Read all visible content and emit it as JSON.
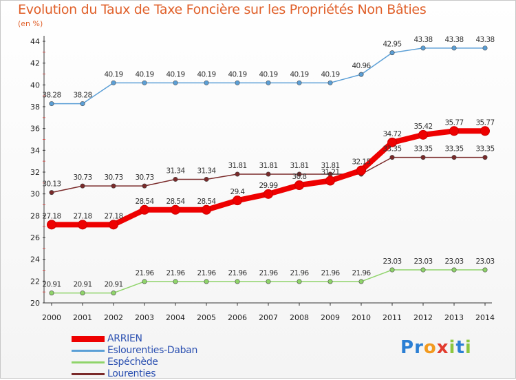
{
  "chart_data": {
    "type": "line",
    "title": "Evolution du Taux de Taxe Foncière sur les Propriétés Non Bâties",
    "ylabel": "(en %)",
    "x": [
      "2000",
      "2001",
      "2002",
      "2003",
      "2004",
      "2005",
      "2006",
      "2007",
      "2008",
      "2009",
      "2010",
      "2011",
      "2012",
      "2013",
      "2014"
    ],
    "ylim": [
      20,
      44
    ],
    "yticks": [
      20,
      22,
      24,
      26,
      28,
      30,
      32,
      34,
      36,
      38,
      40,
      42,
      44
    ],
    "grid": false,
    "legend_placement": "bottom-left",
    "series": [
      {
        "name": "ARRIEN",
        "color": "#ee0000",
        "values": [
          27.18,
          27.18,
          27.18,
          28.54,
          28.54,
          28.54,
          29.4,
          29.99,
          30.8,
          31.21,
          32.15,
          34.72,
          35.42,
          35.77,
          35.77
        ],
        "labels": [
          "27.18",
          "27.18",
          "27.18",
          "28.54",
          "28.54",
          "28.54",
          "29.4",
          "29.99",
          "30.8",
          "31.21",
          "32.15",
          "34.72",
          "35.42",
          "35.77",
          "35.77"
        ]
      },
      {
        "name": "Eslourenties-Daban",
        "color": "#5b9fd6",
        "values": [
          38.28,
          38.28,
          40.19,
          40.19,
          40.19,
          40.19,
          40.19,
          40.19,
          40.19,
          40.19,
          40.96,
          42.95,
          43.38,
          43.38,
          43.38
        ],
        "labels": [
          "38.28",
          "38.28",
          "40.19",
          "40.19",
          "40.19",
          "40.19",
          "40.19",
          "40.19",
          "40.19",
          "40.19",
          "40.96",
          "42.95",
          "43.38",
          "43.38",
          "43.38"
        ]
      },
      {
        "name": "Espéchède",
        "color": "#8fd46a",
        "values": [
          20.91,
          20.91,
          20.91,
          21.96,
          21.96,
          21.96,
          21.96,
          21.96,
          21.96,
          21.96,
          21.96,
          23.03,
          23.03,
          23.03,
          23.03
        ],
        "labels": [
          "20.91",
          "20.91",
          "20.91",
          "21.96",
          "21.96",
          "21.96",
          "21.96",
          "21.96",
          "21.96",
          "21.96",
          "21.96",
          "23.03",
          "23.03",
          "23.03",
          "23.03"
        ]
      },
      {
        "name": "Lourenties",
        "color": "#7a2a2a",
        "values": [
          30.13,
          30.73,
          30.73,
          30.73,
          31.34,
          31.34,
          31.81,
          31.81,
          31.81,
          31.81,
          31.81,
          33.35,
          33.35,
          33.35,
          33.35
        ],
        "labels": [
          "30.13",
          "30.73",
          "30.73",
          "30.73",
          "31.34",
          "31.34",
          "31.81",
          "31.81",
          "31.81",
          "31.81",
          "",
          "33.35",
          "33.35",
          "33.35",
          "33.35"
        ]
      }
    ]
  },
  "logo": {
    "letters": [
      "P",
      "r",
      "o",
      "x",
      "i",
      "t",
      "i"
    ],
    "colors": [
      "#2b7fd4",
      "#2b7fd4",
      "#f29a1f",
      "#e23b2e",
      "#8cc63f",
      "#2b7fd4",
      "#8cc63f"
    ]
  }
}
